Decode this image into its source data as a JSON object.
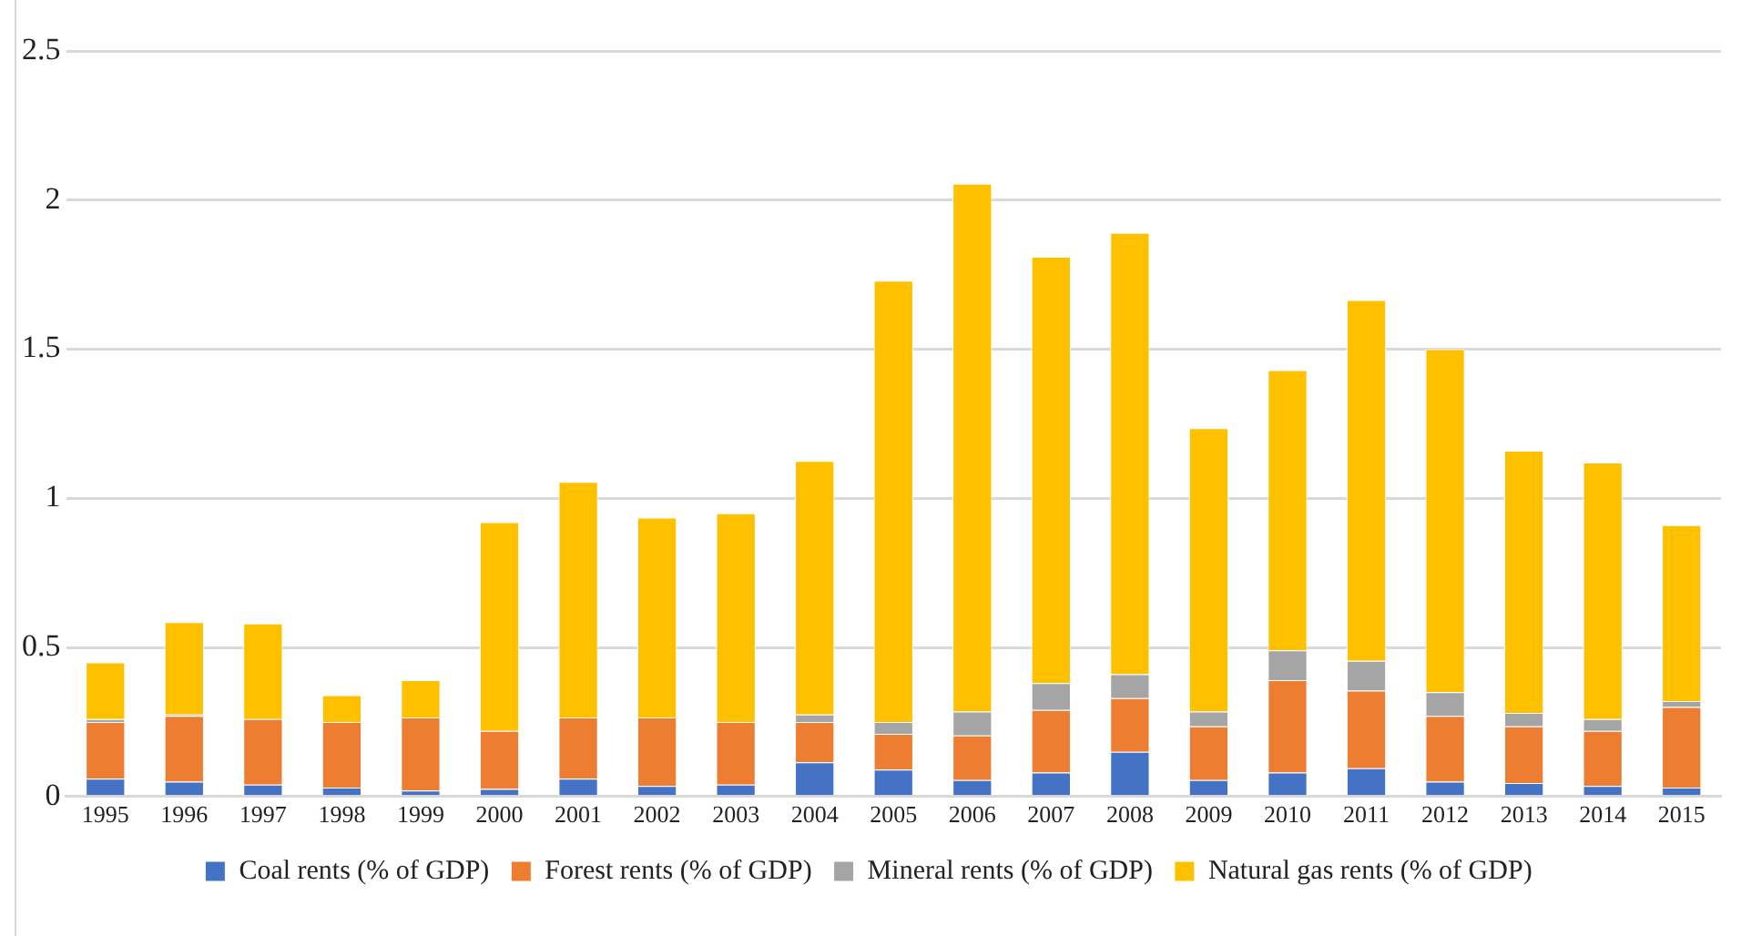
{
  "chart_data": {
    "type": "bar",
    "stacked": true,
    "categories": [
      "1995",
      "1996",
      "1997",
      "1998",
      "1999",
      "2000",
      "2001",
      "2002",
      "2003",
      "2004",
      "2005",
      "2006",
      "2007",
      "2008",
      "2009",
      "2010",
      "2011",
      "2012",
      "2013",
      "2014",
      "2015"
    ],
    "series": [
      {
        "name": "Coal rents (% of GDP)",
        "color": "#4472c4",
        "values": [
          0.06,
          0.05,
          0.04,
          0.03,
          0.02,
          0.025,
          0.06,
          0.035,
          0.04,
          0.115,
          0.09,
          0.055,
          0.08,
          0.15,
          0.055,
          0.08,
          0.095,
          0.05,
          0.045,
          0.035,
          0.03
        ]
      },
      {
        "name": "Forest rents (% of GDP)",
        "color": "#ed7d31",
        "values": [
          0.19,
          0.22,
          0.22,
          0.22,
          0.245,
          0.195,
          0.205,
          0.23,
          0.21,
          0.135,
          0.12,
          0.15,
          0.21,
          0.18,
          0.18,
          0.31,
          0.26,
          0.22,
          0.19,
          0.185,
          0.27
        ]
      },
      {
        "name": "Mineral rents (% of GDP)",
        "color": "#a5a5a5",
        "values": [
          0.01,
          0.005,
          0,
          0,
          0,
          0,
          0,
          0,
          0,
          0.025,
          0.04,
          0.08,
          0.09,
          0.08,
          0.05,
          0.1,
          0.1,
          0.08,
          0.045,
          0.04,
          0.02
        ]
      },
      {
        "name": "Natural gas rents (% of GDP)",
        "color": "#ffc000",
        "values": [
          0.19,
          0.31,
          0.32,
          0.09,
          0.125,
          0.7,
          0.79,
          0.67,
          0.7,
          0.85,
          1.48,
          1.77,
          1.43,
          1.48,
          0.95,
          0.94,
          1.21,
          1.15,
          0.88,
          0.86,
          0.59
        ]
      }
    ],
    "ylim": [
      0,
      2.5
    ],
    "yticks": [
      0,
      0.5,
      1,
      1.5,
      2,
      2.5
    ],
    "grid": "y",
    "legend": "bottom"
  }
}
